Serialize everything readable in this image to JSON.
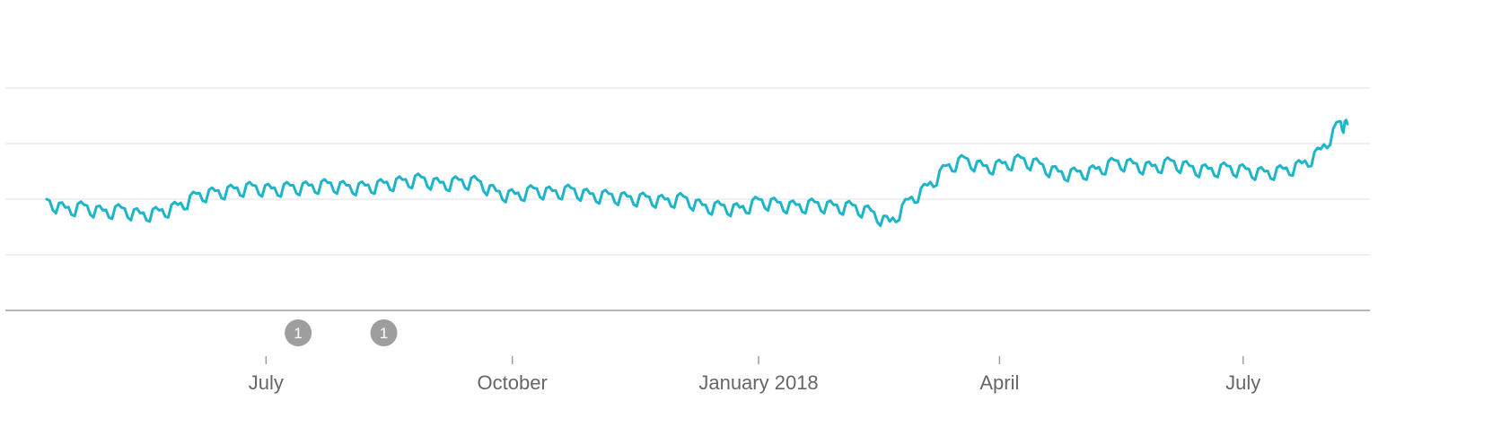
{
  "chart_data": {
    "type": "line",
    "title": "",
    "xlabel": "",
    "ylabel": "",
    "x_range": [
      "2017-04-02",
      "2018-08-10"
    ],
    "y_range": [
      0,
      100
    ],
    "gridlines_y": [
      20,
      40,
      60,
      80
    ],
    "grid": true,
    "legend": "none",
    "x_ticks": [
      {
        "date": "2017-07-01",
        "label": "July"
      },
      {
        "date": "2017-10-01",
        "label": "October"
      },
      {
        "date": "2018-01-01",
        "label": "January 2018"
      },
      {
        "date": "2018-04-01",
        "label": "April"
      },
      {
        "date": "2018-07-01",
        "label": "July"
      }
    ],
    "annotations": [
      {
        "date": "2017-07-13",
        "label": "1"
      },
      {
        "date": "2017-08-14",
        "label": "1"
      }
    ],
    "series": [
      {
        "name": "",
        "color": "#1fb5c9",
        "points": [
          [
            "2017-04-10",
            40
          ],
          [
            "2017-04-17",
            37
          ],
          [
            "2017-04-24",
            38
          ],
          [
            "2017-05-01",
            36
          ],
          [
            "2017-05-08",
            37
          ],
          [
            "2017-05-15",
            35
          ],
          [
            "2017-05-22",
            36
          ],
          [
            "2017-05-29",
            38
          ],
          [
            "2017-06-05",
            42
          ],
          [
            "2017-06-12",
            43
          ],
          [
            "2017-06-19",
            44
          ],
          [
            "2017-06-26",
            45
          ],
          [
            "2017-07-03",
            44
          ],
          [
            "2017-07-10",
            45
          ],
          [
            "2017-07-17",
            45
          ],
          [
            "2017-07-24",
            46
          ],
          [
            "2017-07-31",
            45
          ],
          [
            "2017-08-07",
            45
          ],
          [
            "2017-08-14",
            46
          ],
          [
            "2017-08-21",
            47
          ],
          [
            "2017-08-28",
            48
          ],
          [
            "2017-09-04",
            46
          ],
          [
            "2017-09-11",
            47
          ],
          [
            "2017-09-18",
            47
          ],
          [
            "2017-09-25",
            43
          ],
          [
            "2017-10-02",
            42
          ],
          [
            "2017-10-09",
            44
          ],
          [
            "2017-10-16",
            43
          ],
          [
            "2017-10-23",
            44
          ],
          [
            "2017-10-30",
            42
          ],
          [
            "2017-11-06",
            42
          ],
          [
            "2017-11-13",
            41
          ],
          [
            "2017-11-20",
            41
          ],
          [
            "2017-11-27",
            40
          ],
          [
            "2017-12-04",
            41
          ],
          [
            "2017-12-11",
            38
          ],
          [
            "2017-12-18",
            38
          ],
          [
            "2017-12-25",
            37
          ],
          [
            "2018-01-01",
            40
          ],
          [
            "2018-01-08",
            39
          ],
          [
            "2018-01-15",
            38
          ],
          [
            "2018-01-22",
            39
          ],
          [
            "2018-01-29",
            38
          ],
          [
            "2018-02-05",
            38
          ],
          [
            "2018-02-12",
            36
          ],
          [
            "2018-02-19",
            32
          ],
          [
            "2018-02-26",
            40
          ],
          [
            "2018-03-05",
            45
          ],
          [
            "2018-03-12",
            52
          ],
          [
            "2018-03-19",
            55
          ],
          [
            "2018-03-26",
            52
          ],
          [
            "2018-04-02",
            53
          ],
          [
            "2018-04-09",
            55
          ],
          [
            "2018-04-16",
            53
          ],
          [
            "2018-04-23",
            50
          ],
          [
            "2018-04-30",
            50
          ],
          [
            "2018-05-07",
            51
          ],
          [
            "2018-05-14",
            54
          ],
          [
            "2018-05-21",
            53
          ],
          [
            "2018-05-28",
            52
          ],
          [
            "2018-06-04",
            54
          ],
          [
            "2018-06-11",
            52
          ],
          [
            "2018-06-18",
            51
          ],
          [
            "2018-06-25",
            52
          ],
          [
            "2018-07-02",
            51
          ],
          [
            "2018-07-09",
            50
          ],
          [
            "2018-07-16",
            51
          ],
          [
            "2018-07-23",
            53
          ],
          [
            "2018-07-30",
            58
          ],
          [
            "2018-08-06",
            68
          ],
          [
            "2018-08-09",
            67
          ]
        ]
      }
    ]
  }
}
